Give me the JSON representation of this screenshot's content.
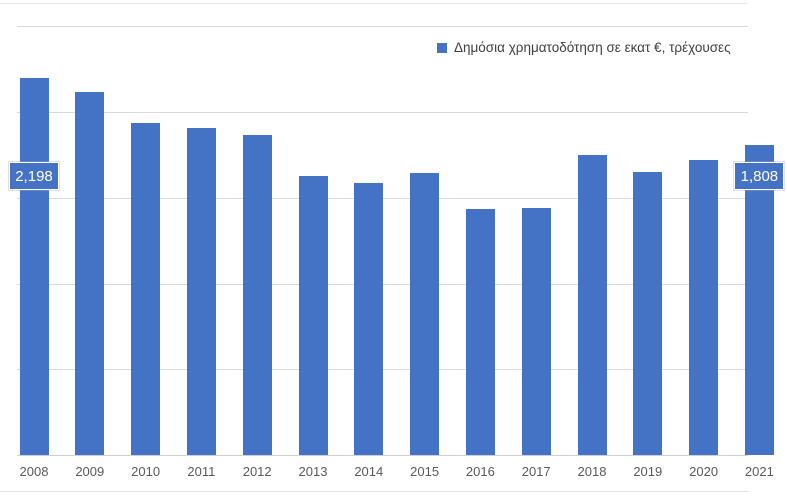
{
  "page": {
    "background_color": "#ffffff",
    "top_divider_color": "#e7e7e7",
    "bottom_divider_color": "#e3e3e3"
  },
  "legend": {
    "label": "Δημόσια χρηματοδότηση σε εκατ €, τρέχουσες",
    "marker_color": "#4472c4",
    "text_color": "#3f3f3f",
    "position": "top",
    "clipped_at_right_edge": true
  },
  "chart_data": {
    "type": "bar",
    "title": "",
    "xlabel": "",
    "ylabel": "",
    "series_name": "Δημόσια χρηματοδότηση σε εκατ €, τρέχουσες",
    "categories": [
      "2008",
      "2009",
      "2010",
      "2011",
      "2012",
      "2013",
      "2014",
      "2015",
      "2016",
      "2017",
      "2018",
      "2019",
      "2020",
      "2021"
    ],
    "values": [
      2198,
      2115,
      1934,
      1909,
      1866,
      1627,
      1588,
      1646,
      1433,
      1439,
      1750,
      1648,
      1720,
      1808
    ],
    "ylim": [
      0,
      2500
    ],
    "gridline_interval": 500,
    "grid": true,
    "y_tick_labels_visible": false,
    "legend_position": "top",
    "bar_color": "#4472c4",
    "gridline_color": "#d9d9d9",
    "axis_line_color": "#d0d0d0",
    "tick_label_color": "#595959",
    "data_labels": [
      {
        "index": 0,
        "text": "2,198"
      },
      {
        "index": 13,
        "text": "1,808",
        "clipped_at_right_edge": true
      }
    ],
    "last_category_clipped_at_right_edge": true
  }
}
